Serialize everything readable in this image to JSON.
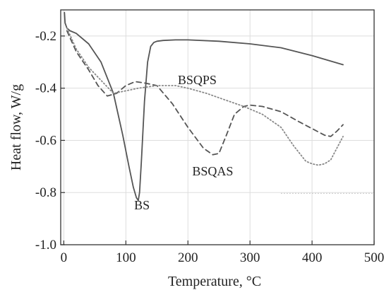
{
  "chart_data": {
    "type": "line",
    "title": "",
    "xlabel": "Temperature, °C",
    "ylabel": "Heat flow, W/g",
    "xlim": [
      -5,
      500
    ],
    "ylim": [
      -1.0,
      -0.1
    ],
    "xticks": [
      0,
      100,
      200,
      300,
      400,
      500
    ],
    "yticks": [
      -1.0,
      -0.8,
      -0.6,
      -0.4,
      -0.2
    ],
    "ytick_labels": [
      "-1.0",
      "-0.8",
      "-0.6",
      "-0.4",
      "-0.2"
    ],
    "grid": true,
    "legend": "none",
    "series": [
      {
        "name": "BS",
        "style": "solid",
        "color": "#555555",
        "x": [
          1,
          2,
          5,
          10,
          20,
          40,
          60,
          80,
          95,
          105,
          112,
          117,
          120,
          122,
          125,
          130,
          135,
          140,
          145,
          150,
          160,
          180,
          200,
          250,
          300,
          350,
          400,
          450
        ],
        "y": [
          -0.11,
          -0.15,
          -0.17,
          -0.18,
          -0.19,
          -0.23,
          -0.3,
          -0.42,
          -0.58,
          -0.7,
          -0.78,
          -0.82,
          -0.83,
          -0.8,
          -0.68,
          -0.45,
          -0.3,
          -0.24,
          -0.225,
          -0.22,
          -0.217,
          -0.215,
          -0.215,
          -0.22,
          -0.23,
          -0.245,
          -0.275,
          -0.31
        ]
      },
      {
        "name": "BSQAS",
        "style": "dashed",
        "color": "#555555",
        "x": [
          5,
          20,
          40,
          55,
          70,
          85,
          100,
          115,
          130,
          150,
          175,
          200,
          225,
          240,
          250,
          262,
          275,
          290,
          300,
          320,
          350,
          380,
          400,
          420,
          430,
          440,
          450
        ],
        "y": [
          -0.18,
          -0.26,
          -0.33,
          -0.39,
          -0.43,
          -0.42,
          -0.39,
          -0.375,
          -0.38,
          -0.39,
          -0.46,
          -0.55,
          -0.63,
          -0.655,
          -0.65,
          -0.58,
          -0.5,
          -0.47,
          -0.465,
          -0.47,
          -0.49,
          -0.53,
          -0.555,
          -0.58,
          -0.585,
          -0.565,
          -0.54
        ]
      },
      {
        "name": "BSQPS",
        "style": "dotted",
        "color": "#888888",
        "x": [
          5,
          20,
          40,
          60,
          80,
          100,
          120,
          150,
          180,
          200,
          230,
          260,
          290,
          320,
          350,
          370,
          390,
          400,
          410,
          420,
          430,
          440,
          450
        ],
        "y": [
          -0.17,
          -0.25,
          -0.32,
          -0.37,
          -0.42,
          -0.41,
          -0.4,
          -0.39,
          -0.39,
          -0.4,
          -0.42,
          -0.445,
          -0.47,
          -0.5,
          -0.55,
          -0.62,
          -0.68,
          -0.69,
          -0.695,
          -0.69,
          -0.675,
          -0.63,
          -0.585
        ]
      }
    ],
    "annotations": [
      {
        "text": "BS",
        "x": 126,
        "y": -0.865
      },
      {
        "text": "BSQAS",
        "x": 240,
        "y": -0.735
      },
      {
        "text": "BSQPS",
        "x": 215,
        "y": -0.385
      }
    ],
    "baseline": {
      "x": [
        350,
        500
      ],
      "y": -0.803
    }
  }
}
